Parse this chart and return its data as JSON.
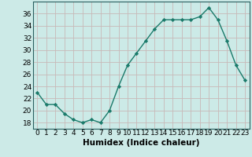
{
  "x": [
    0,
    1,
    2,
    3,
    4,
    5,
    6,
    7,
    8,
    9,
    10,
    11,
    12,
    13,
    14,
    15,
    16,
    17,
    18,
    19,
    20,
    21,
    22,
    23
  ],
  "y": [
    23,
    21,
    21,
    19.5,
    18.5,
    18,
    18.5,
    18,
    20,
    24,
    27.5,
    29.5,
    31.5,
    33.5,
    35,
    35,
    35,
    35,
    35.5,
    37,
    35,
    31.5,
    27.5,
    25
  ],
  "line_color": "#1a7a6a",
  "marker": "D",
  "marker_size": 2.2,
  "bg_color": "#cceae7",
  "grid_color": "#b0d8d4",
  "xlabel": "Humidex (Indice chaleur)",
  "ylim": [
    17,
    38
  ],
  "yticks": [
    18,
    20,
    22,
    24,
    26,
    28,
    30,
    32,
    34,
    36
  ],
  "xlim": [
    -0.5,
    23.5
  ],
  "xlabel_fontsize": 7.5,
  "tick_fontsize": 6.5
}
